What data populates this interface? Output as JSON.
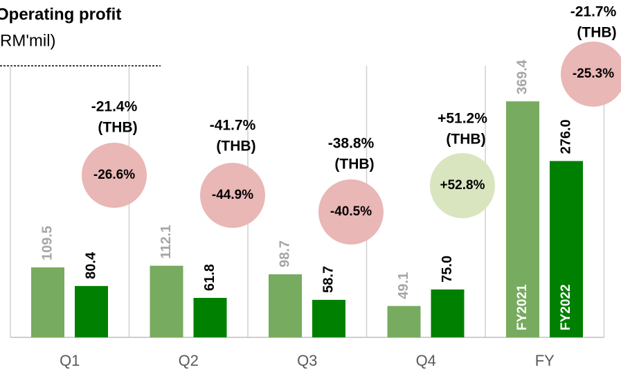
{
  "chart_data": {
    "type": "bar",
    "title": "Operating profit",
    "subtitle": "(RM'mil)",
    "categories": [
      "Q1",
      "Q2",
      "Q3",
      "Q4",
      "FY"
    ],
    "series": [
      {
        "name": "FY2021",
        "color": "#77ab5f",
        "values": [
          109.5,
          112.1,
          98.7,
          49.1,
          369.4
        ],
        "value_labels": [
          "109.5",
          "112.1",
          "98.7",
          "49.1",
          "369.4"
        ]
      },
      {
        "name": "FY2022",
        "color": "#008000",
        "values": [
          80.4,
          61.8,
          58.7,
          75.0,
          276.0
        ],
        "value_labels": [
          "80.4",
          "61.8",
          "58.7",
          "75.0",
          "276.0"
        ]
      }
    ],
    "ylim": [
      0,
      425
    ],
    "annotations": [
      {
        "change": "-21.4%",
        "currency": "(THB)",
        "circle": "-26.6%",
        "color": "#e9b7b5"
      },
      {
        "change": "-41.7%",
        "currency": "(THB)",
        "circle": "-44.9%",
        "color": "#e9b7b5"
      },
      {
        "change": "-38.8%",
        "currency": "(THB)",
        "circle": "-40.5%",
        "color": "#e9b7b5"
      },
      {
        "change": "+51.2%",
        "currency": "(THB)",
        "circle": "+52.8%",
        "color": "#d8e5bf"
      },
      {
        "change": "-21.7%",
        "currency": "(THB)",
        "circle": "-25.3%",
        "color": "#e9b7b5"
      }
    ]
  }
}
